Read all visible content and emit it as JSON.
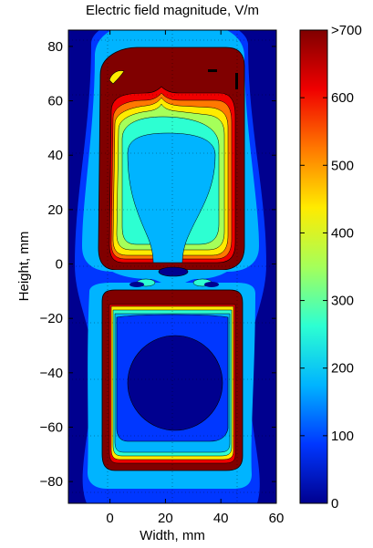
{
  "chart_data": {
    "type": "heatmap",
    "title": "Electric field magnitude, V/m",
    "xlabel": "Width, mm",
    "ylabel": "Height, mm",
    "xlim": [
      -15,
      60
    ],
    "ylim": [
      -88,
      86
    ],
    "x_ticks": [
      0,
      20,
      40,
      60
    ],
    "x_tick_labels": [
      "0",
      "20",
      "40",
      "60"
    ],
    "y_ticks": [
      80,
      60,
      40,
      20,
      0,
      -20,
      -40,
      -60,
      -80
    ],
    "y_tick_labels": [
      "80",
      "60",
      "40",
      "20",
      "0",
      "−20",
      "−40",
      "−60",
      "−80"
    ],
    "grid": "dotted",
    "colorbar": {
      "range": [
        0,
        700
      ],
      "ticks": [
        0,
        100,
        200,
        300,
        400,
        500,
        600,
        700
      ],
      "tick_labels": [
        "0",
        "100",
        "200",
        "300",
        "400",
        "500",
        "600",
        ">700"
      ],
      "colormap": "jet"
    },
    "contour_levels": [
      100,
      200,
      300,
      400,
      500,
      600,
      700
    ],
    "regions": [
      {
        "name": "upper-electrode-loop",
        "x": [
          -2,
          48
        ],
        "y": [
          0,
          78
        ],
        "value": ">700"
      },
      {
        "name": "upper-interior-low-field",
        "x": [
          10,
          40
        ],
        "y": [
          6,
          50
        ],
        "value": 250
      },
      {
        "name": "lower-electrode-loop",
        "x": [
          -2,
          48
        ],
        "y": [
          -74,
          -10
        ],
        "value": ">700"
      },
      {
        "name": "lower-interior-minimum",
        "x": [
          10,
          38
        ],
        "y": [
          -60,
          -20
        ],
        "value": 40
      }
    ],
    "colors": {
      "level0": "#00008f",
      "level1": "#0037ff",
      "level2": "#00b4ff",
      "level3": "#2dffd2",
      "level4": "#a5ff5a",
      "level5": "#ffeb00",
      "level6": "#ff7800",
      "level7": "#f00000",
      "level8": "#800000"
    }
  }
}
